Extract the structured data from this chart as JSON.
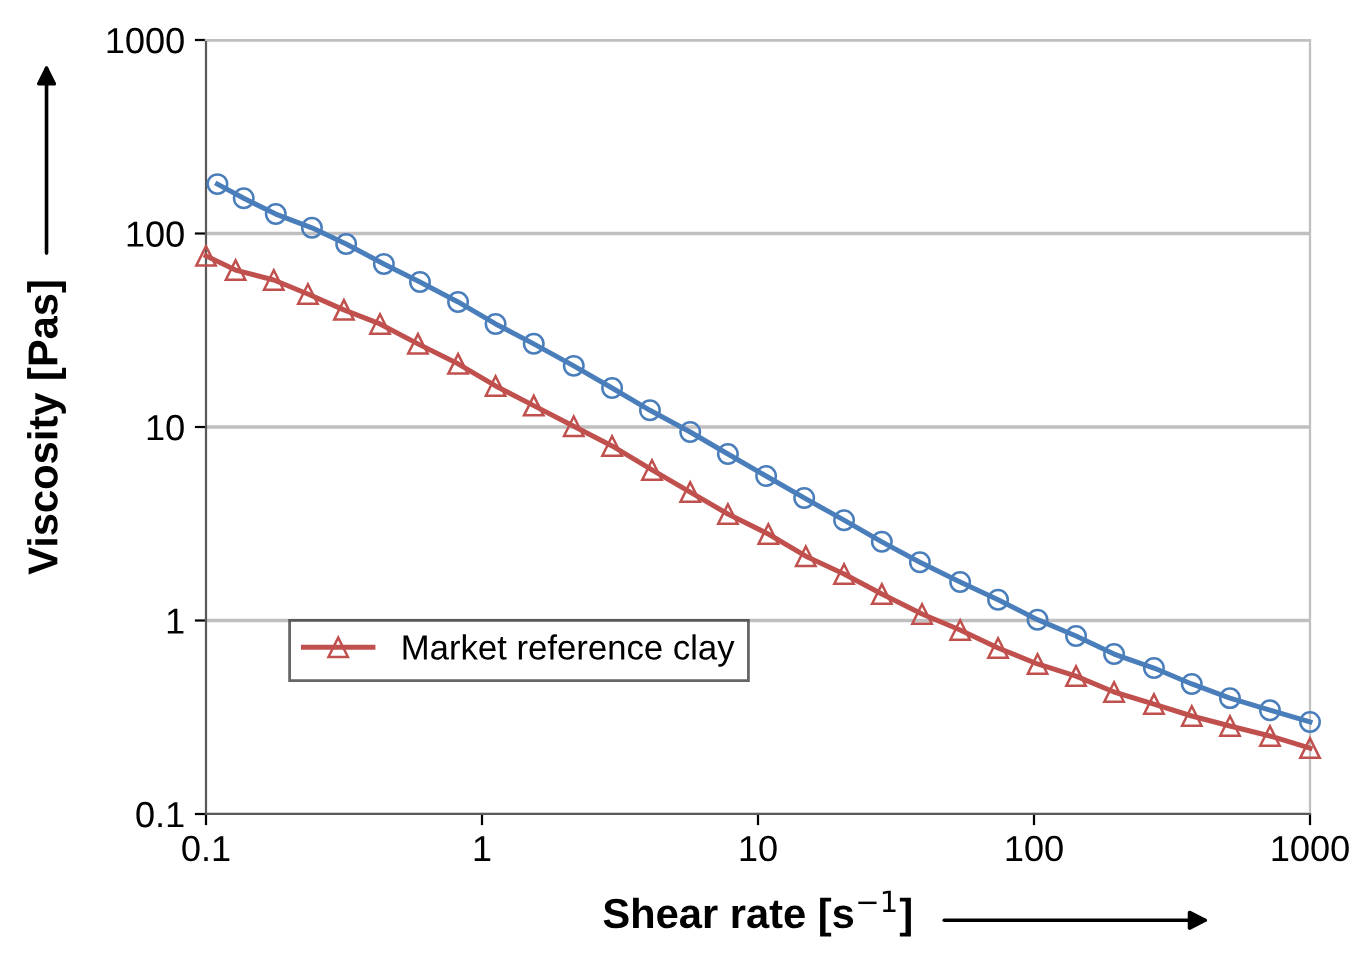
{
  "chart_data": {
    "type": "line",
    "xlabel": "Shear rate [s$^{−1}$]",
    "ylabel": "Viscosity [Pas]",
    "log": "xy",
    "xlim": [
      0.1,
      1000
    ],
    "xticks": [
      0.1,
      1,
      10,
      100,
      1000
    ],
    "ylim": [
      0.1,
      1000
    ],
    "yticks": [
      0.1,
      1,
      10,
      100,
      1000
    ],
    "grid": "y",
    "legend": "lower left",
    "line_style": "solid",
    "series": [
      {
        "color": "#4a7ebb",
        "marker": "circle",
        "x": [
          0.11,
          0.137,
          0.179,
          0.242,
          0.322,
          0.441,
          0.596,
          0.819,
          1.12,
          1.54,
          2.15,
          2.96,
          4.06,
          5.68,
          7.78,
          10.7,
          14.7,
          20.5,
          28.1,
          38.6,
          54.0,
          74.1,
          103,
          142,
          195,
          272,
          373,
          513,
          716,
          1000
        ],
        "values": [
          180,
          152,
          126,
          107,
          88.3,
          69.6,
          56.1,
          44.3,
          34.1,
          26.9,
          20.7,
          15.9,
          12.2,
          9.42,
          7.25,
          5.58,
          4.3,
          3.3,
          2.55,
          2.0,
          1.58,
          1.28,
          1.01,
          0.832,
          0.671,
          0.568,
          0.47,
          0.397,
          0.344,
          0.299
        ]
      },
      {
        "name": "Market reference clay",
        "color": "#c0504d",
        "marker": "triangle",
        "x": [
          0.1,
          0.128,
          0.176,
          0.234,
          0.316,
          0.427,
          0.586,
          0.819,
          1.12,
          1.54,
          2.15,
          2.96,
          4.13,
          5.68,
          7.78,
          10.9,
          14.9,
          20.5,
          28.1,
          39.3,
          54.0,
          74.1,
          103,
          142,
          195,
          272,
          373,
          513,
          716,
          1000
        ],
        "values": [
          76.6,
          64.7,
          57.5,
          48.7,
          40.3,
          34.1,
          26.9,
          21.2,
          16.3,
          12.9,
          10.1,
          7.98,
          6.0,
          4.61,
          3.55,
          2.8,
          2.15,
          1.74,
          1.37,
          1.08,
          0.893,
          0.721,
          0.596,
          0.516,
          0.427,
          0.37,
          0.321,
          0.285,
          0.253,
          0.219
        ]
      }
    ]
  }
}
